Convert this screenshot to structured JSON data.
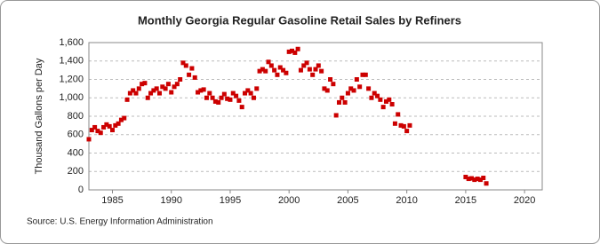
{
  "chart_data": {
    "type": "scatter",
    "title": "Monthly Georgia Regular Gasoline Retail Sales by Refiners",
    "ylabel": "Thousand Gallons per Day",
    "source": "Source: U.S. Energy Information Administration",
    "color": "#cc0000",
    "grid": true,
    "xlim": [
      1983,
      2021.5
    ],
    "ylim": [
      0,
      1600
    ],
    "xticks": [
      1985,
      1990,
      1995,
      2000,
      2005,
      2010,
      2015,
      2020
    ],
    "yticks": [
      0,
      200,
      400,
      600,
      800,
      {
        "value": 1000,
        "label": "1,000"
      },
      {
        "value": 1200,
        "label": "1,200"
      },
      {
        "value": 1400,
        "label": "1,400"
      },
      {
        "value": 1600,
        "label": "1,600"
      }
    ],
    "x": [
      1983,
      1983.25,
      1983.5,
      1983.75,
      1984,
      1984.25,
      1984.5,
      1984.75,
      1985,
      1985.25,
      1985.5,
      1985.75,
      1986,
      1986.25,
      1986.5,
      1986.75,
      1987,
      1987.25,
      1987.5,
      1987.75,
      1988,
      1988.25,
      1988.5,
      1988.75,
      1989,
      1989.25,
      1989.5,
      1989.75,
      1990,
      1990.25,
      1990.5,
      1990.75,
      1991,
      1991.25,
      1991.5,
      1991.75,
      1992,
      1992.25,
      1992.5,
      1992.75,
      1993,
      1993.25,
      1993.5,
      1993.75,
      1994,
      1994.25,
      1994.5,
      1994.75,
      1995,
      1995.25,
      1995.5,
      1995.75,
      1996,
      1996.25,
      1996.5,
      1996.75,
      1997,
      1997.25,
      1997.5,
      1997.75,
      1998,
      1998.25,
      1998.5,
      1998.75,
      1999,
      1999.25,
      1999.5,
      1999.75,
      2000,
      2000.25,
      2000.5,
      2000.75,
      2001,
      2001.25,
      2001.5,
      2001.75,
      2002,
      2002.25,
      2002.5,
      2002.75,
      2003,
      2003.25,
      2003.5,
      2003.75,
      2004,
      2004.25,
      2004.5,
      2004.75,
      2005,
      2005.25,
      2005.5,
      2005.75,
      2006,
      2006.25,
      2006.5,
      2006.75,
      2007,
      2007.25,
      2007.5,
      2007.75,
      2008,
      2008.25,
      2008.5,
      2008.75,
      2009,
      2009.25,
      2009.5,
      2009.75,
      2010,
      2010.25,
      2015,
      2015.25,
      2015.5,
      2015.75,
      2016,
      2016.25,
      2016.5,
      2016.75
    ],
    "values": [
      550,
      650,
      680,
      640,
      620,
      680,
      710,
      690,
      650,
      700,
      720,
      760,
      780,
      980,
      1050,
      1080,
      1050,
      1100,
      1150,
      1160,
      1000,
      1050,
      1080,
      1100,
      1050,
      1120,
      1100,
      1150,
      1060,
      1120,
      1150,
      1200,
      1380,
      1350,
      1250,
      1320,
      1220,
      1060,
      1080,
      1090,
      1000,
      1050,
      1000,
      960,
      950,
      1000,
      1040,
      990,
      980,
      1050,
      1020,
      970,
      900,
      1050,
      1080,
      1050,
      1000,
      1100,
      1290,
      1310,
      1290,
      1390,
      1350,
      1300,
      1250,
      1330,
      1300,
      1270,
      1500,
      1510,
      1490,
      1530,
      1300,
      1350,
      1380,
      1310,
      1250,
      1310,
      1350,
      1290,
      1100,
      1080,
      1200,
      1150,
      810,
      950,
      1000,
      950,
      1050,
      1100,
      1080,
      1200,
      1120,
      1250,
      1250,
      1100,
      1000,
      1050,
      1020,
      980,
      900,
      960,
      980,
      930,
      720,
      820,
      700,
      690,
      640,
      700,
      140,
      120,
      125,
      110,
      120,
      110,
      130,
      70
    ]
  }
}
